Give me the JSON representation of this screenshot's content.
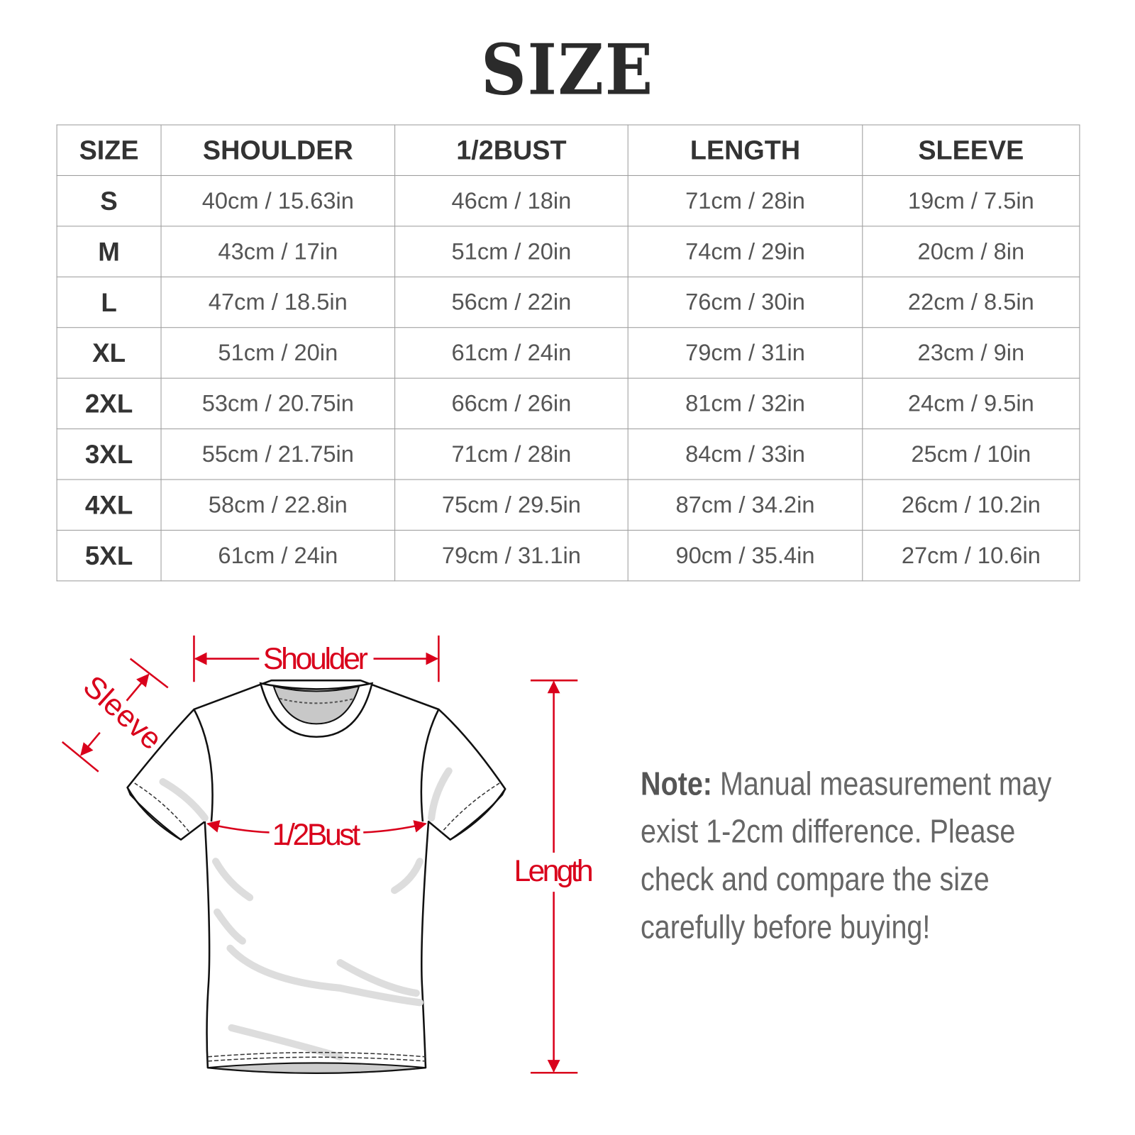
{
  "title": "SIZE",
  "table": {
    "headers": [
      "SIZE",
      "SHOULDER",
      "1/2BUST",
      "LENGTH",
      "SLEEVE"
    ],
    "rows": [
      [
        "S",
        "40cm / 15.63in",
        "46cm / 18in",
        "71cm / 28in",
        "19cm / 7.5in"
      ],
      [
        "M",
        "43cm / 17in",
        "51cm / 20in",
        "74cm / 29in",
        "20cm / 8in"
      ],
      [
        "L",
        "47cm / 18.5in",
        "56cm / 22in",
        "76cm / 30in",
        "22cm / 8.5in"
      ],
      [
        "XL",
        "51cm / 20in",
        "61cm / 24in",
        "79cm / 31in",
        "23cm / 9in"
      ],
      [
        "2XL",
        "53cm / 20.75in",
        "66cm / 26in",
        "81cm / 32in",
        "24cm / 9.5in"
      ],
      [
        "3XL",
        "55cm / 21.75in",
        "71cm / 28in",
        "84cm / 33in",
        "25cm / 10in"
      ],
      [
        "4XL",
        "58cm / 22.8in",
        "75cm / 29.5in",
        "87cm / 34.2in",
        "26cm / 10.2in"
      ],
      [
        "5XL",
        "61cm / 24in",
        "79cm / 31.1in",
        "90cm / 35.4in",
        "27cm / 10.6in"
      ]
    ]
  },
  "diagram": {
    "shoulder_label": "Shoulder",
    "sleeve_label": "Sleeve",
    "bust_label": "1/2Bust",
    "length_label": "Length",
    "accent_color": "#d9001b"
  },
  "note": {
    "label": "Note:",
    "text": "Manual measurement may exist 1-2cm difference. Please check and compare the size carefully before buying!"
  }
}
